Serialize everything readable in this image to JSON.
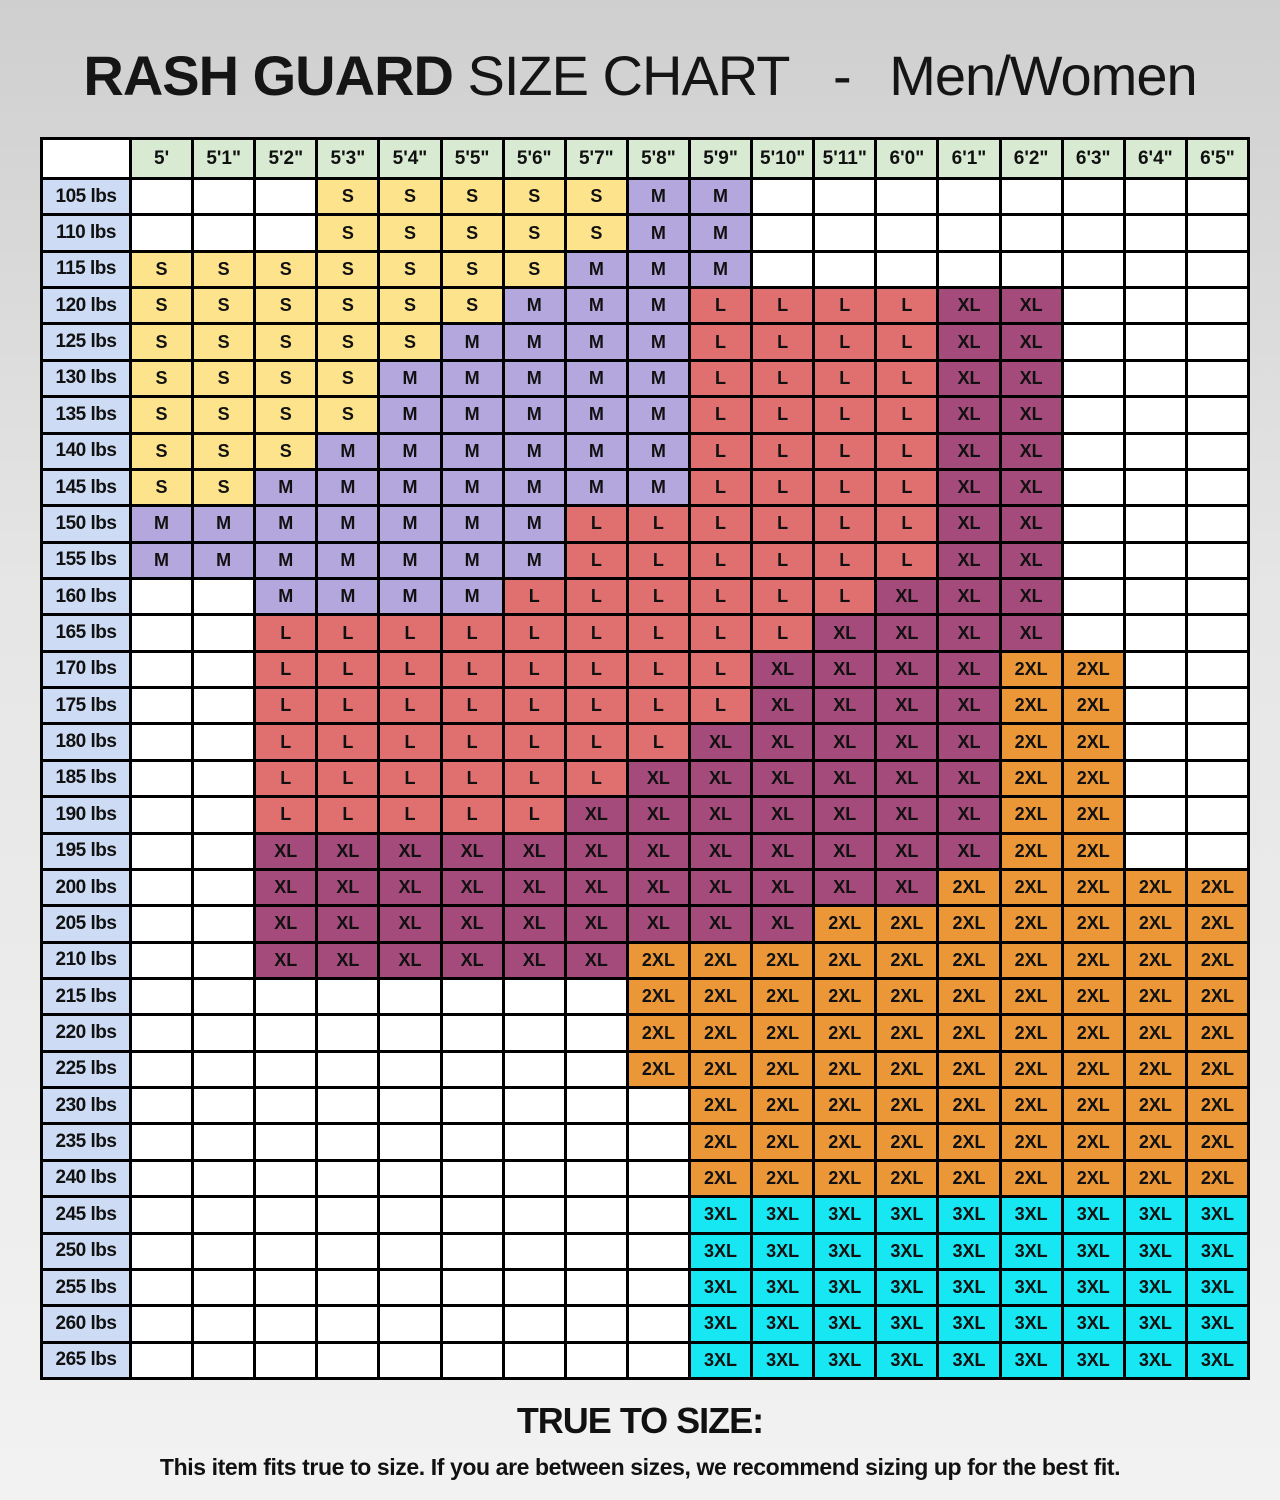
{
  "title": {
    "part1": "RASH GUARD",
    "part2": "SIZE CHART",
    "separator": "-",
    "part3": "Men/Women"
  },
  "colors": {
    "S": "#fde38b",
    "M": "#b4a7dd",
    "L": "#e0706f",
    "XL": "#a54b7b",
    "2XL": "#ec9737",
    "3XL": "#16e7f2",
    "header": "#d8ead2",
    "weight": "#cddcf4",
    "empty": "#ffffff"
  },
  "chart_data": {
    "type": "table",
    "columns": [
      "5'",
      "5'1\"",
      "5'2\"",
      "5'3\"",
      "5'4\"",
      "5'5\"",
      "5'6\"",
      "5'7\"",
      "5'8\"",
      "5'9\"",
      "5'10\"",
      "5'11\"",
      "6'0\"",
      "6'1\"",
      "6'2\"",
      "6'3\"",
      "6'4\"",
      "6'5\""
    ],
    "rows": [
      {
        "weight": "105 lbs",
        "sizes": [
          "",
          "",
          "",
          "S",
          "S",
          "S",
          "S",
          "S",
          "M",
          "M",
          "",
          "",
          "",
          "",
          "",
          "",
          "",
          ""
        ]
      },
      {
        "weight": "110 lbs",
        "sizes": [
          "",
          "",
          "",
          "S",
          "S",
          "S",
          "S",
          "S",
          "M",
          "M",
          "",
          "",
          "",
          "",
          "",
          "",
          "",
          ""
        ]
      },
      {
        "weight": "115 lbs",
        "sizes": [
          "S",
          "S",
          "S",
          "S",
          "S",
          "S",
          "S",
          "M",
          "M",
          "M",
          "",
          "",
          "",
          "",
          "",
          "",
          "",
          ""
        ]
      },
      {
        "weight": "120 lbs",
        "sizes": [
          "S",
          "S",
          "S",
          "S",
          "S",
          "S",
          "M",
          "M",
          "M",
          "L",
          "L",
          "L",
          "L",
          "XL",
          "XL",
          "",
          "",
          ""
        ]
      },
      {
        "weight": "125 lbs",
        "sizes": [
          "S",
          "S",
          "S",
          "S",
          "S",
          "M",
          "M",
          "M",
          "M",
          "L",
          "L",
          "L",
          "L",
          "XL",
          "XL",
          "",
          "",
          ""
        ]
      },
      {
        "weight": "130 lbs",
        "sizes": [
          "S",
          "S",
          "S",
          "S",
          "M",
          "M",
          "M",
          "M",
          "M",
          "L",
          "L",
          "L",
          "L",
          "XL",
          "XL",
          "",
          "",
          ""
        ]
      },
      {
        "weight": "135 lbs",
        "sizes": [
          "S",
          "S",
          "S",
          "S",
          "M",
          "M",
          "M",
          "M",
          "M",
          "L",
          "L",
          "L",
          "L",
          "XL",
          "XL",
          "",
          "",
          ""
        ]
      },
      {
        "weight": "140 lbs",
        "sizes": [
          "S",
          "S",
          "S",
          "M",
          "M",
          "M",
          "M",
          "M",
          "M",
          "L",
          "L",
          "L",
          "L",
          "XL",
          "XL",
          "",
          "",
          ""
        ]
      },
      {
        "weight": "145 lbs",
        "sizes": [
          "S",
          "S",
          "M",
          "M",
          "M",
          "M",
          "M",
          "M",
          "M",
          "L",
          "L",
          "L",
          "L",
          "XL",
          "XL",
          "",
          "",
          ""
        ]
      },
      {
        "weight": "150 lbs",
        "sizes": [
          "M",
          "M",
          "M",
          "M",
          "M",
          "M",
          "M",
          "L",
          "L",
          "L",
          "L",
          "L",
          "L",
          "XL",
          "XL",
          "",
          "",
          ""
        ]
      },
      {
        "weight": "155 lbs",
        "sizes": [
          "M",
          "M",
          "M",
          "M",
          "M",
          "M",
          "M",
          "L",
          "L",
          "L",
          "L",
          "L",
          "L",
          "XL",
          "XL",
          "",
          "",
          ""
        ]
      },
      {
        "weight": "160 lbs",
        "sizes": [
          "",
          "",
          "M",
          "M",
          "M",
          "M",
          "L",
          "L",
          "L",
          "L",
          "L",
          "L",
          "XL",
          "XL",
          "XL",
          "",
          "",
          ""
        ]
      },
      {
        "weight": "165 lbs",
        "sizes": [
          "",
          "",
          "L",
          "L",
          "L",
          "L",
          "L",
          "L",
          "L",
          "L",
          "L",
          "XL",
          "XL",
          "XL",
          "XL",
          "",
          "",
          ""
        ]
      },
      {
        "weight": "170 lbs",
        "sizes": [
          "",
          "",
          "L",
          "L",
          "L",
          "L",
          "L",
          "L",
          "L",
          "L",
          "XL",
          "XL",
          "XL",
          "XL",
          "2XL",
          "2XL",
          "",
          ""
        ]
      },
      {
        "weight": "175 lbs",
        "sizes": [
          "",
          "",
          "L",
          "L",
          "L",
          "L",
          "L",
          "L",
          "L",
          "L",
          "XL",
          "XL",
          "XL",
          "XL",
          "2XL",
          "2XL",
          "",
          ""
        ]
      },
      {
        "weight": "180 lbs",
        "sizes": [
          "",
          "",
          "L",
          "L",
          "L",
          "L",
          "L",
          "L",
          "L",
          "XL",
          "XL",
          "XL",
          "XL",
          "XL",
          "2XL",
          "2XL",
          "",
          ""
        ]
      },
      {
        "weight": "185 lbs",
        "sizes": [
          "",
          "",
          "L",
          "L",
          "L",
          "L",
          "L",
          "L",
          "XL",
          "XL",
          "XL",
          "XL",
          "XL",
          "XL",
          "2XL",
          "2XL",
          "",
          ""
        ]
      },
      {
        "weight": "190 lbs",
        "sizes": [
          "",
          "",
          "L",
          "L",
          "L",
          "L",
          "L",
          "XL",
          "XL",
          "XL",
          "XL",
          "XL",
          "XL",
          "XL",
          "2XL",
          "2XL",
          "",
          ""
        ]
      },
      {
        "weight": "195 lbs",
        "sizes": [
          "",
          "",
          "XL",
          "XL",
          "XL",
          "XL",
          "XL",
          "XL",
          "XL",
          "XL",
          "XL",
          "XL",
          "XL",
          "XL",
          "2XL",
          "2XL",
          "",
          ""
        ]
      },
      {
        "weight": "200 lbs",
        "sizes": [
          "",
          "",
          "XL",
          "XL",
          "XL",
          "XL",
          "XL",
          "XL",
          "XL",
          "XL",
          "XL",
          "XL",
          "XL",
          "2XL",
          "2XL",
          "2XL",
          "2XL",
          "2XL"
        ]
      },
      {
        "weight": "205 lbs",
        "sizes": [
          "",
          "",
          "XL",
          "XL",
          "XL",
          "XL",
          "XL",
          "XL",
          "XL",
          "XL",
          "XL",
          "2XL",
          "2XL",
          "2XL",
          "2XL",
          "2XL",
          "2XL",
          "2XL"
        ]
      },
      {
        "weight": "210 lbs",
        "sizes": [
          "",
          "",
          "XL",
          "XL",
          "XL",
          "XL",
          "XL",
          "XL",
          "2XL",
          "2XL",
          "2XL",
          "2XL",
          "2XL",
          "2XL",
          "2XL",
          "2XL",
          "2XL",
          "2XL"
        ]
      },
      {
        "weight": "215 lbs",
        "sizes": [
          "",
          "",
          "",
          "",
          "",
          "",
          "",
          "",
          "2XL",
          "2XL",
          "2XL",
          "2XL",
          "2XL",
          "2XL",
          "2XL",
          "2XL",
          "2XL",
          "2XL"
        ]
      },
      {
        "weight": "220 lbs",
        "sizes": [
          "",
          "",
          "",
          "",
          "",
          "",
          "",
          "",
          "2XL",
          "2XL",
          "2XL",
          "2XL",
          "2XL",
          "2XL",
          "2XL",
          "2XL",
          "2XL",
          "2XL"
        ]
      },
      {
        "weight": "225 lbs",
        "sizes": [
          "",
          "",
          "",
          "",
          "",
          "",
          "",
          "",
          "2XL",
          "2XL",
          "2XL",
          "2XL",
          "2XL",
          "2XL",
          "2XL",
          "2XL",
          "2XL",
          "2XL"
        ]
      },
      {
        "weight": "230 lbs",
        "sizes": [
          "",
          "",
          "",
          "",
          "",
          "",
          "",
          "",
          "",
          "2XL",
          "2XL",
          "2XL",
          "2XL",
          "2XL",
          "2XL",
          "2XL",
          "2XL",
          "2XL"
        ]
      },
      {
        "weight": "235 lbs",
        "sizes": [
          "",
          "",
          "",
          "",
          "",
          "",
          "",
          "",
          "",
          "2XL",
          "2XL",
          "2XL",
          "2XL",
          "2XL",
          "2XL",
          "2XL",
          "2XL",
          "2XL"
        ]
      },
      {
        "weight": "240 lbs",
        "sizes": [
          "",
          "",
          "",
          "",
          "",
          "",
          "",
          "",
          "",
          "2XL",
          "2XL",
          "2XL",
          "2XL",
          "2XL",
          "2XL",
          "2XL",
          "2XL",
          "2XL"
        ]
      },
      {
        "weight": "245 lbs",
        "sizes": [
          "",
          "",
          "",
          "",
          "",
          "",
          "",
          "",
          "",
          "3XL",
          "3XL",
          "3XL",
          "3XL",
          "3XL",
          "3XL",
          "3XL",
          "3XL",
          "3XL"
        ]
      },
      {
        "weight": "250 lbs",
        "sizes": [
          "",
          "",
          "",
          "",
          "",
          "",
          "",
          "",
          "",
          "3XL",
          "3XL",
          "3XL",
          "3XL",
          "3XL",
          "3XL",
          "3XL",
          "3XL",
          "3XL"
        ]
      },
      {
        "weight": "255 lbs",
        "sizes": [
          "",
          "",
          "",
          "",
          "",
          "",
          "",
          "",
          "",
          "3XL",
          "3XL",
          "3XL",
          "3XL",
          "3XL",
          "3XL",
          "3XL",
          "3XL",
          "3XL"
        ]
      },
      {
        "weight": "260 lbs",
        "sizes": [
          "",
          "",
          "",
          "",
          "",
          "",
          "",
          "",
          "",
          "3XL",
          "3XL",
          "3XL",
          "3XL",
          "3XL",
          "3XL",
          "3XL",
          "3XL",
          "3XL"
        ]
      },
      {
        "weight": "265 lbs",
        "sizes": [
          "",
          "",
          "",
          "",
          "",
          "",
          "",
          "",
          "",
          "3XL",
          "3XL",
          "3XL",
          "3XL",
          "3XL",
          "3XL",
          "3XL",
          "3XL",
          "3XL"
        ]
      }
    ]
  },
  "footer": {
    "heading": "TRUE TO SIZE:",
    "text": "This item fits true to size. If you are between sizes, we recommend sizing up for the best fit."
  }
}
